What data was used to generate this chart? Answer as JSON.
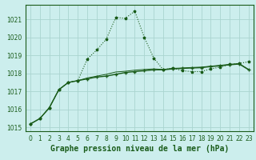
{
  "xlabel": "Graphe pression niveau de la mer (hPa)",
  "background_color": "#cceeed",
  "grid_color": "#aad4d0",
  "line_color": "#1a5c1a",
  "hours": [
    0,
    1,
    2,
    3,
    4,
    5,
    6,
    7,
    8,
    9,
    10,
    11,
    12,
    13,
    14,
    15,
    16,
    17,
    18,
    19,
    20,
    21,
    22,
    23
  ],
  "series1": [
    1015.2,
    1015.5,
    1016.1,
    1017.1,
    1017.5,
    1017.6,
    1018.8,
    1019.3,
    1019.9,
    1021.1,
    1021.05,
    1021.45,
    1020.0,
    1018.85,
    1018.2,
    1018.3,
    1018.15,
    1018.1,
    1018.1,
    1018.25,
    1018.35,
    1018.5,
    1018.55,
    1018.65
  ],
  "series2": [
    1015.2,
    1015.5,
    1016.1,
    1017.1,
    1017.5,
    1017.6,
    1017.7,
    1017.8,
    1017.85,
    1017.95,
    1018.05,
    1018.1,
    1018.15,
    1018.2,
    1018.2,
    1018.25,
    1018.28,
    1018.3,
    1018.32,
    1018.38,
    1018.42,
    1018.48,
    1018.52,
    1018.2
  ],
  "series3": [
    1015.2,
    1015.5,
    1016.1,
    1017.1,
    1017.5,
    1017.6,
    1017.75,
    1017.85,
    1017.95,
    1018.08,
    1018.12,
    1018.18,
    1018.22,
    1018.25,
    1018.22,
    1018.28,
    1018.3,
    1018.33,
    1018.35,
    1018.4,
    1018.45,
    1018.5,
    1018.55,
    1018.22
  ],
  "ylim": [
    1014.8,
    1021.8
  ],
  "yticks": [
    1015,
    1016,
    1017,
    1018,
    1019,
    1020,
    1021
  ],
  "xlim": [
    -0.5,
    23.5
  ],
  "xticks": [
    0,
    1,
    2,
    3,
    4,
    5,
    6,
    7,
    8,
    9,
    10,
    11,
    12,
    13,
    14,
    15,
    16,
    17,
    18,
    19,
    20,
    21,
    22,
    23
  ],
  "xlabel_fontsize": 7,
  "tick_fontsize": 5.5
}
